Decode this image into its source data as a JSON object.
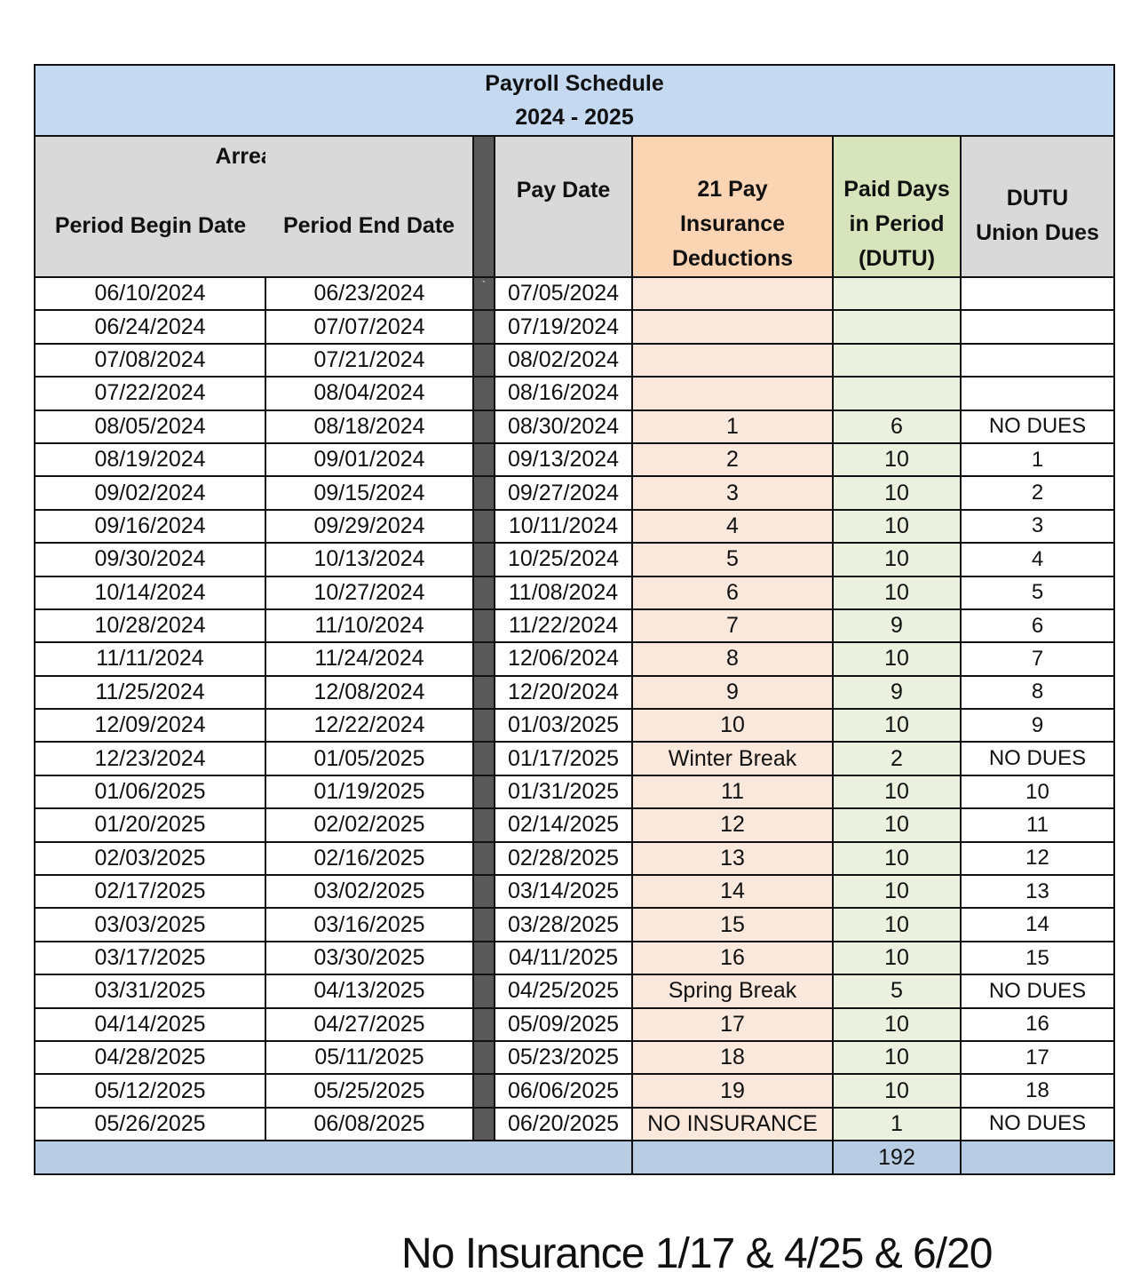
{
  "title": {
    "line1": "Payroll Schedule",
    "line2": "2024 - 2025"
  },
  "headers": {
    "arrears": "Arrears",
    "period_begin": "Period Begin Date",
    "period_end": "Period End Date",
    "pay_date": "Pay Date",
    "insurance": [
      "21 Pay",
      "Insurance",
      "Deductions"
    ],
    "paid_days": [
      "Paid Days",
      "in Period",
      "(DUTU)"
    ],
    "dues": [
      "DUTU",
      "Union Dues"
    ]
  },
  "colors": {
    "title_bg": "#c5d9f1",
    "header_bg": "#d9d9d9",
    "insurance_header": "#fbd4b4",
    "insurance_cell": "#fbe8dc",
    "paid_header": "#d7e4bc",
    "paid_cell": "#ebf1de",
    "separator": "#595959",
    "total_bg": "#b8cce4"
  },
  "rows": [
    {
      "begin": "06/10/2024",
      "end": "06/23/2024",
      "sep": "`",
      "pay": "07/05/2024",
      "ins": "",
      "paid": "",
      "dues": ""
    },
    {
      "begin": "06/24/2024",
      "end": "07/07/2024",
      "pay": "07/19/2024",
      "ins": "",
      "paid": "",
      "dues": ""
    },
    {
      "begin": "07/08/2024",
      "end": "07/21/2024",
      "pay": "08/02/2024",
      "ins": "",
      "paid": "",
      "dues": ""
    },
    {
      "begin": "07/22/2024",
      "end": "08/04/2024",
      "pay": "08/16/2024",
      "ins": "",
      "paid": "",
      "dues": ""
    },
    {
      "begin": "08/05/2024",
      "end": "08/18/2024",
      "pay": "08/30/2024",
      "ins": "1",
      "paid": "6",
      "dues": "NO DUES"
    },
    {
      "begin": "08/19/2024",
      "end": "09/01/2024",
      "pay": "09/13/2024",
      "ins": "2",
      "paid": "10",
      "dues": "1"
    },
    {
      "begin": "09/02/2024",
      "end": "09/15/2024",
      "pay": "09/27/2024",
      "ins": "3",
      "paid": "10",
      "dues": "2"
    },
    {
      "begin": "09/16/2024",
      "end": "09/29/2024",
      "pay": "10/11/2024",
      "ins": "4",
      "paid": "10",
      "dues": "3"
    },
    {
      "begin": "09/30/2024",
      "end": "10/13/2024",
      "pay": "10/25/2024",
      "ins": "5",
      "paid": "10",
      "dues": "4"
    },
    {
      "begin": "10/14/2024",
      "end": "10/27/2024",
      "pay": "11/08/2024",
      "ins": "6",
      "paid": "10",
      "dues": "5"
    },
    {
      "begin": "10/28/2024",
      "end": "11/10/2024",
      "pay": "11/22/2024",
      "ins": "7",
      "paid": "9",
      "dues": "6"
    },
    {
      "begin": "11/11/2024",
      "end": "11/24/2024",
      "pay": "12/06/2024",
      "ins": "8",
      "paid": "10",
      "dues": "7"
    },
    {
      "begin": "11/25/2024",
      "end": "12/08/2024",
      "pay": "12/20/2024",
      "ins": "9",
      "paid": "9",
      "dues": "8"
    },
    {
      "begin": "12/09/2024",
      "end": "12/22/2024",
      "pay": "01/03/2025",
      "ins": "10",
      "paid": "10",
      "dues": "9"
    },
    {
      "begin": "12/23/2024",
      "end": "01/05/2025",
      "pay": "01/17/2025",
      "ins": "Winter Break",
      "paid": "2",
      "dues": "NO DUES"
    },
    {
      "begin": "01/06/2025",
      "end": "01/19/2025",
      "pay": "01/31/2025",
      "ins": "11",
      "paid": "10",
      "dues": "10"
    },
    {
      "begin": "01/20/2025",
      "end": "02/02/2025",
      "pay": "02/14/2025",
      "ins": "12",
      "paid": "10",
      "dues": "11"
    },
    {
      "begin": "02/03/2025",
      "end": "02/16/2025",
      "pay": "02/28/2025",
      "ins": "13",
      "paid": "10",
      "dues": "12"
    },
    {
      "begin": "02/17/2025",
      "end": "03/02/2025",
      "pay": "03/14/2025",
      "ins": "14",
      "paid": "10",
      "dues": "13"
    },
    {
      "begin": "03/03/2025",
      "end": "03/16/2025",
      "pay": "03/28/2025",
      "ins": "15",
      "paid": "10",
      "dues": "14"
    },
    {
      "begin": "03/17/2025",
      "end": "03/30/2025",
      "pay": "04/11/2025",
      "ins": "16",
      "paid": "10",
      "dues": "15"
    },
    {
      "begin": "03/31/2025",
      "end": "04/13/2025",
      "pay": "04/25/2025",
      "ins": "Spring Break",
      "paid": "5",
      "dues": "NO DUES"
    },
    {
      "begin": "04/14/2025",
      "end": "04/27/2025",
      "pay": "05/09/2025",
      "ins": "17",
      "paid": "10",
      "dues": "16"
    },
    {
      "begin": "04/28/2025",
      "end": "05/11/2025",
      "pay": "05/23/2025",
      "ins": "18",
      "paid": "10",
      "dues": "17"
    },
    {
      "begin": "05/12/2025",
      "end": "05/25/2025",
      "pay": "06/06/2025",
      "ins": "19",
      "paid": "10",
      "dues": "18"
    },
    {
      "begin": "05/26/2025",
      "end": "06/08/2025",
      "pay": "06/20/2025",
      "ins": "NO INSURANCE",
      "paid": "1",
      "dues": "NO DUES"
    }
  ],
  "total": {
    "paid_days": "192"
  },
  "note": "No Insurance 1/17 & 4/25 & 6/20"
}
